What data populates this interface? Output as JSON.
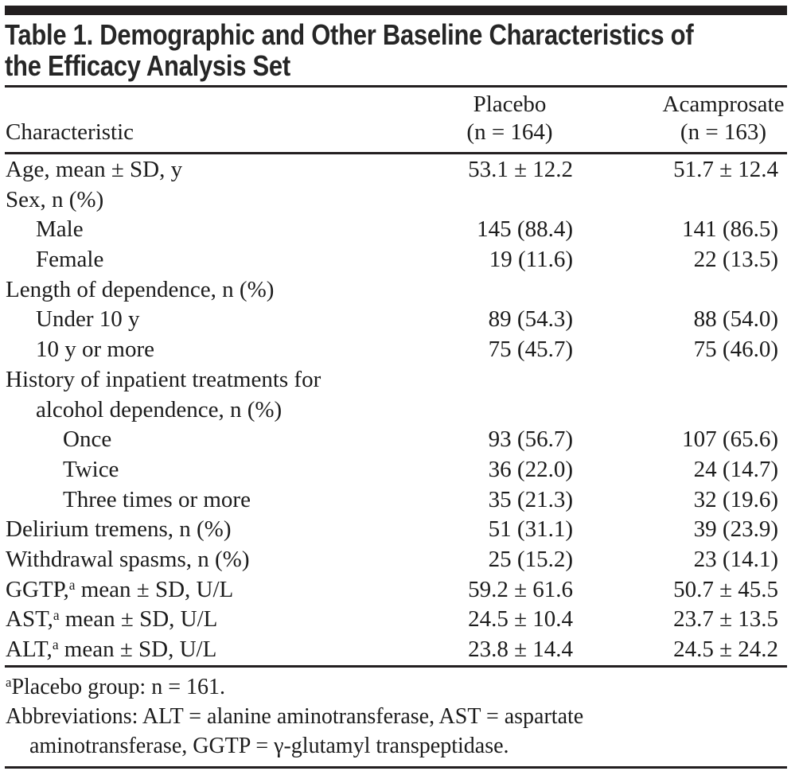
{
  "page": {
    "background": "#ffffff",
    "text_color": "#1c1c1c",
    "rule_color": "#231f20"
  },
  "table": {
    "title_lines": [
      "Table 1. Demographic and Other Baseline Characteristics of",
      "the Efficacy Analysis Set"
    ],
    "header": {
      "characteristic": "Characteristic",
      "placebo": {
        "name": "Placebo",
        "n": "(n = 164)"
      },
      "acamprosate": {
        "name": "Acamprosate",
        "n": "(n = 163)"
      }
    },
    "rows": [
      {
        "label": "Age, mean ± SD, y",
        "indent": 0,
        "placebo": "53.1 ± 12.2",
        "acamprosate": "51.7 ± 12.4"
      },
      {
        "label": "Sex, n (%)",
        "indent": 0,
        "placebo": "",
        "acamprosate": ""
      },
      {
        "label": "Male",
        "indent": 1,
        "placebo": "145 (88.4)",
        "acamprosate": "141 (86.5)"
      },
      {
        "label": "Female",
        "indent": 1,
        "placebo": "19 (11.6)",
        "acamprosate": "22 (13.5)"
      },
      {
        "label": "Length of dependence, n (%)",
        "indent": 0,
        "placebo": "",
        "acamprosate": ""
      },
      {
        "label": "Under 10 y",
        "indent": 1,
        "placebo": "89 (54.3)",
        "acamprosate": "88 (54.0)"
      },
      {
        "label": "10 y or more",
        "indent": 1,
        "placebo": "75 (45.7)",
        "acamprosate": "75 (46.0)"
      },
      {
        "label": "History of inpatient treatments for",
        "indent": 0,
        "placebo": "",
        "acamprosate": ""
      },
      {
        "label": "alcohol dependence, n (%)",
        "indent": 1,
        "placebo": "",
        "acamprosate": ""
      },
      {
        "label": "Once",
        "indent": 2,
        "placebo": "93 (56.7)",
        "acamprosate": "107 (65.6)"
      },
      {
        "label": "Twice",
        "indent": 2,
        "placebo": "36 (22.0)",
        "acamprosate": "24 (14.7)"
      },
      {
        "label": "Three times or more",
        "indent": 2,
        "placebo": "35 (21.3)",
        "acamprosate": "32 (19.6)"
      },
      {
        "label": "Delirium tremens, n (%)",
        "indent": 0,
        "placebo": "51 (31.1)",
        "acamprosate": "39 (23.9)"
      },
      {
        "label": "Withdrawal spasms, n (%)",
        "indent": 0,
        "placebo": "25 (15.2)",
        "acamprosate": "23 (14.1)"
      },
      {
        "label": "GGTP,^{a} mean ± SD, U/L",
        "indent": 0,
        "placebo": "59.2 ± 61.6",
        "acamprosate": "50.7 ± 45.5"
      },
      {
        "label": "AST,^{a} mean ± SD, U/L",
        "indent": 0,
        "placebo": "24.5 ± 10.4",
        "acamprosate": "23.7 ± 13.5"
      },
      {
        "label": "ALT,^{a} mean ± SD, U/L",
        "indent": 0,
        "placebo": "23.8 ± 14.4",
        "acamprosate": "24.5 ± 24.2"
      }
    ],
    "footnotes": [
      "^{a}Placebo group: n = 161.",
      "Abbreviations: ALT = alanine aminotransferase, AST = aspartate aminotransferase, GGTP = γ-glutamyl transpeptidase."
    ]
  }
}
